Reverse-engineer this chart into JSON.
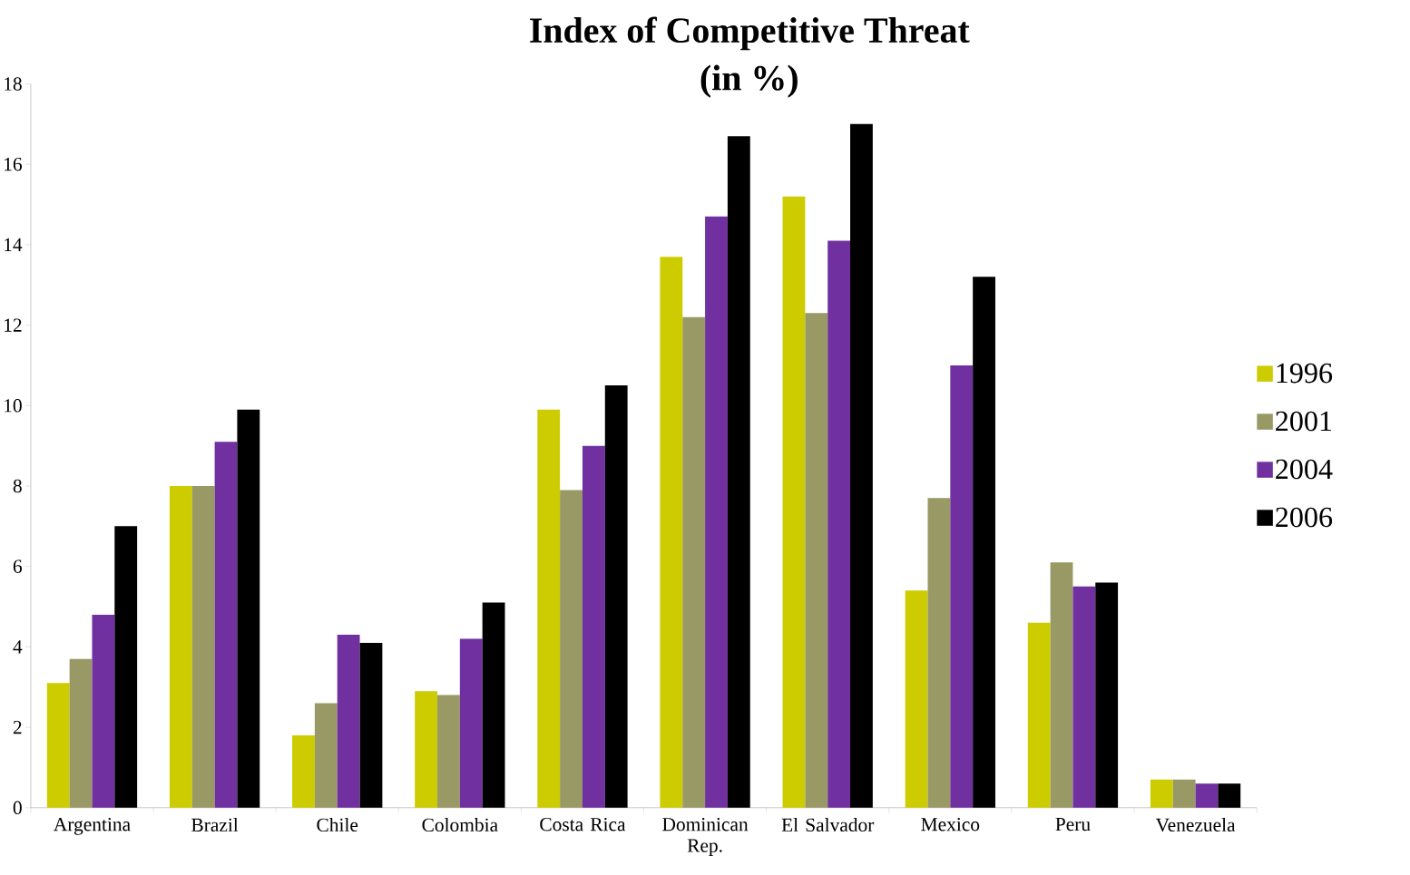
{
  "chart_data": {
    "type": "bar",
    "title": "Index of Competitive Threat",
    "subtitle": "(in %)",
    "categories": [
      "Argentina",
      "Brazil",
      "Chile",
      "Colombia",
      "Costa Rica",
      "Dominican Rep.",
      "El Salvador",
      "Mexico",
      "Peru",
      "Venezuela"
    ],
    "series": [
      {
        "name": "1996",
        "color": "#cccc00",
        "values": [
          3.1,
          8.0,
          1.8,
          2.9,
          9.9,
          13.7,
          15.2,
          5.4,
          4.6,
          0.7
        ]
      },
      {
        "name": "2001",
        "color": "#999966",
        "values": [
          3.7,
          8.0,
          2.6,
          2.8,
          7.9,
          12.2,
          12.3,
          7.7,
          6.1,
          0.7
        ]
      },
      {
        "name": "2004",
        "color": "#7030a0",
        "values": [
          4.8,
          9.1,
          4.3,
          4.2,
          9.0,
          14.7,
          14.1,
          11.0,
          5.5,
          0.6
        ]
      },
      {
        "name": "2006",
        "color": "#000000",
        "values": [
          7.0,
          9.9,
          4.1,
          5.1,
          10.5,
          16.7,
          17.0,
          13.2,
          5.6,
          0.6
        ]
      }
    ],
    "ylim": [
      0,
      18
    ],
    "yticks": [
      0,
      2,
      4,
      6,
      8,
      10,
      12,
      14,
      16,
      18
    ],
    "grid": false,
    "legend": "right"
  }
}
